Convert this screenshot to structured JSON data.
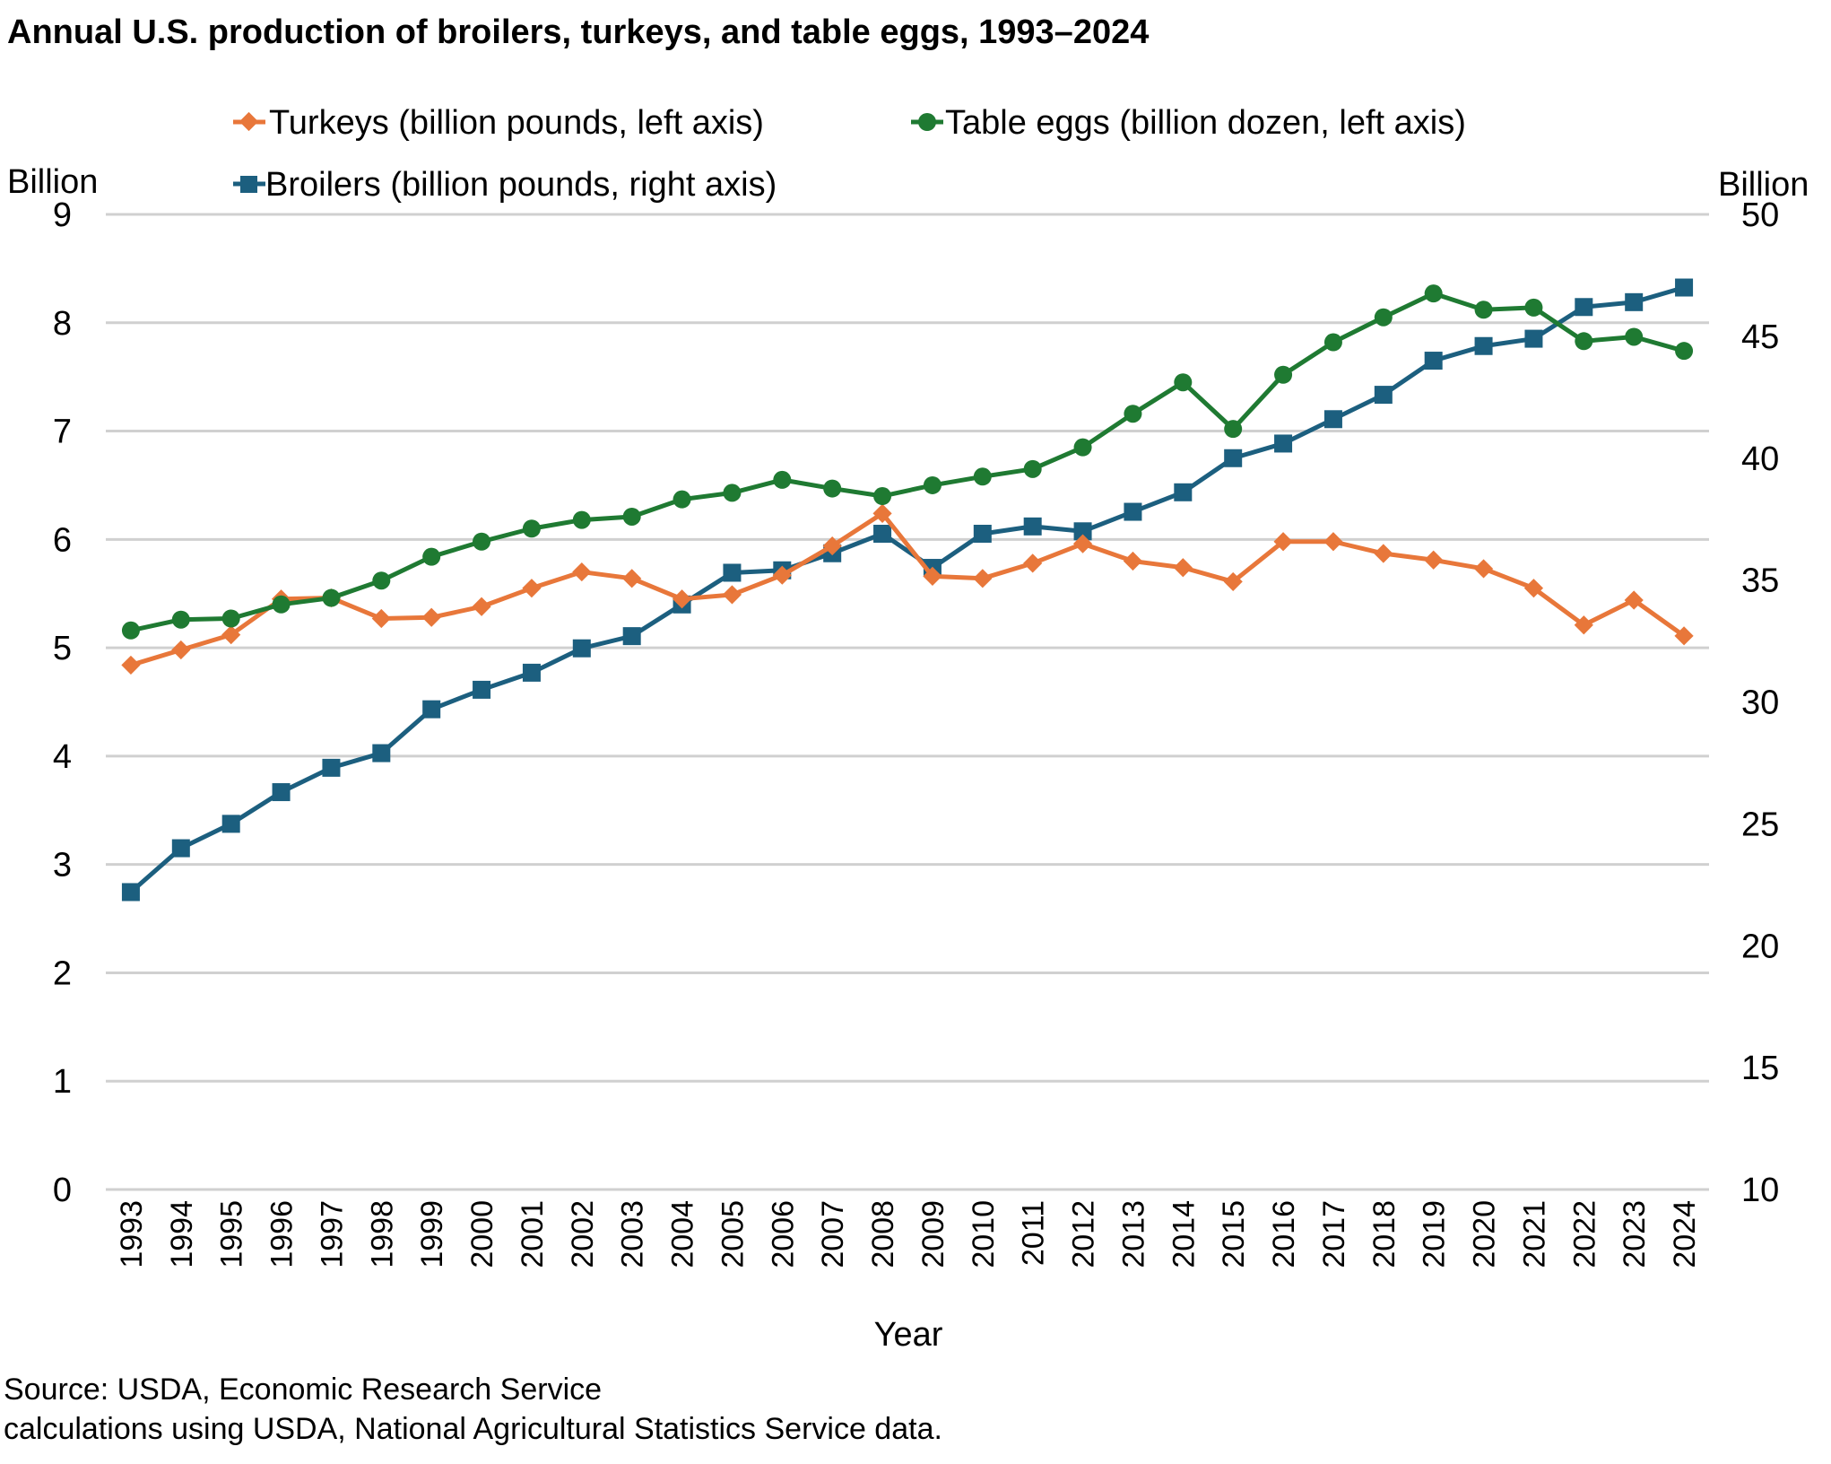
{
  "chart_data": {
    "type": "line",
    "title": "Annual U.S. production of broilers, turkeys, and table eggs, 1993–2024",
    "xlabel": "Year",
    "ylabel_left": "Billion",
    "ylabel_right": "Billion",
    "ylim_left": [
      0,
      9
    ],
    "ylim_right": [
      10,
      50
    ],
    "yticks_left": [
      "0",
      "1",
      "2",
      "3",
      "4",
      "5",
      "6",
      "7",
      "8",
      "9"
    ],
    "yticks_right": [
      "10",
      "15",
      "20",
      "25",
      "30",
      "35",
      "40",
      "45",
      "50"
    ],
    "grid": true,
    "legend_position": "top",
    "source": "Source: USDA, Economic Research Service calculations using USDA, National Agricultural Statistics Service data.",
    "x": [
      "1993",
      "1994",
      "1995",
      "1996",
      "1997",
      "1998",
      "1999",
      "2000",
      "2001",
      "2002",
      "2003",
      "2004",
      "2005",
      "2006",
      "2007",
      "2008",
      "2009",
      "2010",
      "2011",
      "2012",
      "2013",
      "2014",
      "2015",
      "2016",
      "2017",
      "2018",
      "2019",
      "2020",
      "2021",
      "2022",
      "2023",
      "2024"
    ],
    "series": [
      {
        "name": "Turkeys (billion pounds, left axis)",
        "axis": "left",
        "color": "#E8773A",
        "marker": "diamond",
        "values": [
          4.84,
          4.98,
          5.12,
          5.45,
          5.46,
          5.27,
          5.28,
          5.38,
          5.55,
          5.7,
          5.64,
          5.45,
          5.49,
          5.67,
          5.94,
          6.24,
          5.66,
          5.64,
          5.78,
          5.96,
          5.8,
          5.74,
          5.61,
          5.98,
          5.98,
          5.87,
          5.81,
          5.73,
          5.55,
          5.21,
          5.44,
          5.11
        ]
      },
      {
        "name": "Table eggs (billion dozen, left axis)",
        "axis": "left",
        "color": "#1F7A32",
        "marker": "circle",
        "values": [
          5.16,
          5.26,
          5.27,
          5.4,
          5.46,
          5.62,
          5.84,
          5.98,
          6.1,
          6.18,
          6.21,
          6.37,
          6.43,
          6.55,
          6.47,
          6.4,
          6.5,
          6.58,
          6.65,
          6.85,
          7.16,
          7.45,
          7.02,
          7.52,
          7.82,
          8.05,
          8.27,
          8.12,
          8.14,
          7.83,
          7.87,
          7.74
        ]
      },
      {
        "name": "Broilers (billion pounds, right axis)",
        "axis": "right",
        "color": "#1C5F7F",
        "marker": "square",
        "values": [
          22.2,
          24.0,
          25.0,
          26.3,
          27.3,
          27.9,
          29.7,
          30.5,
          31.2,
          32.2,
          32.7,
          34.0,
          35.3,
          35.4,
          36.1,
          36.9,
          35.5,
          36.9,
          37.2,
          37.0,
          37.8,
          38.6,
          40.0,
          40.6,
          41.6,
          42.6,
          44.0,
          44.6,
          44.9,
          46.2,
          46.4,
          47.0
        ]
      }
    ]
  }
}
